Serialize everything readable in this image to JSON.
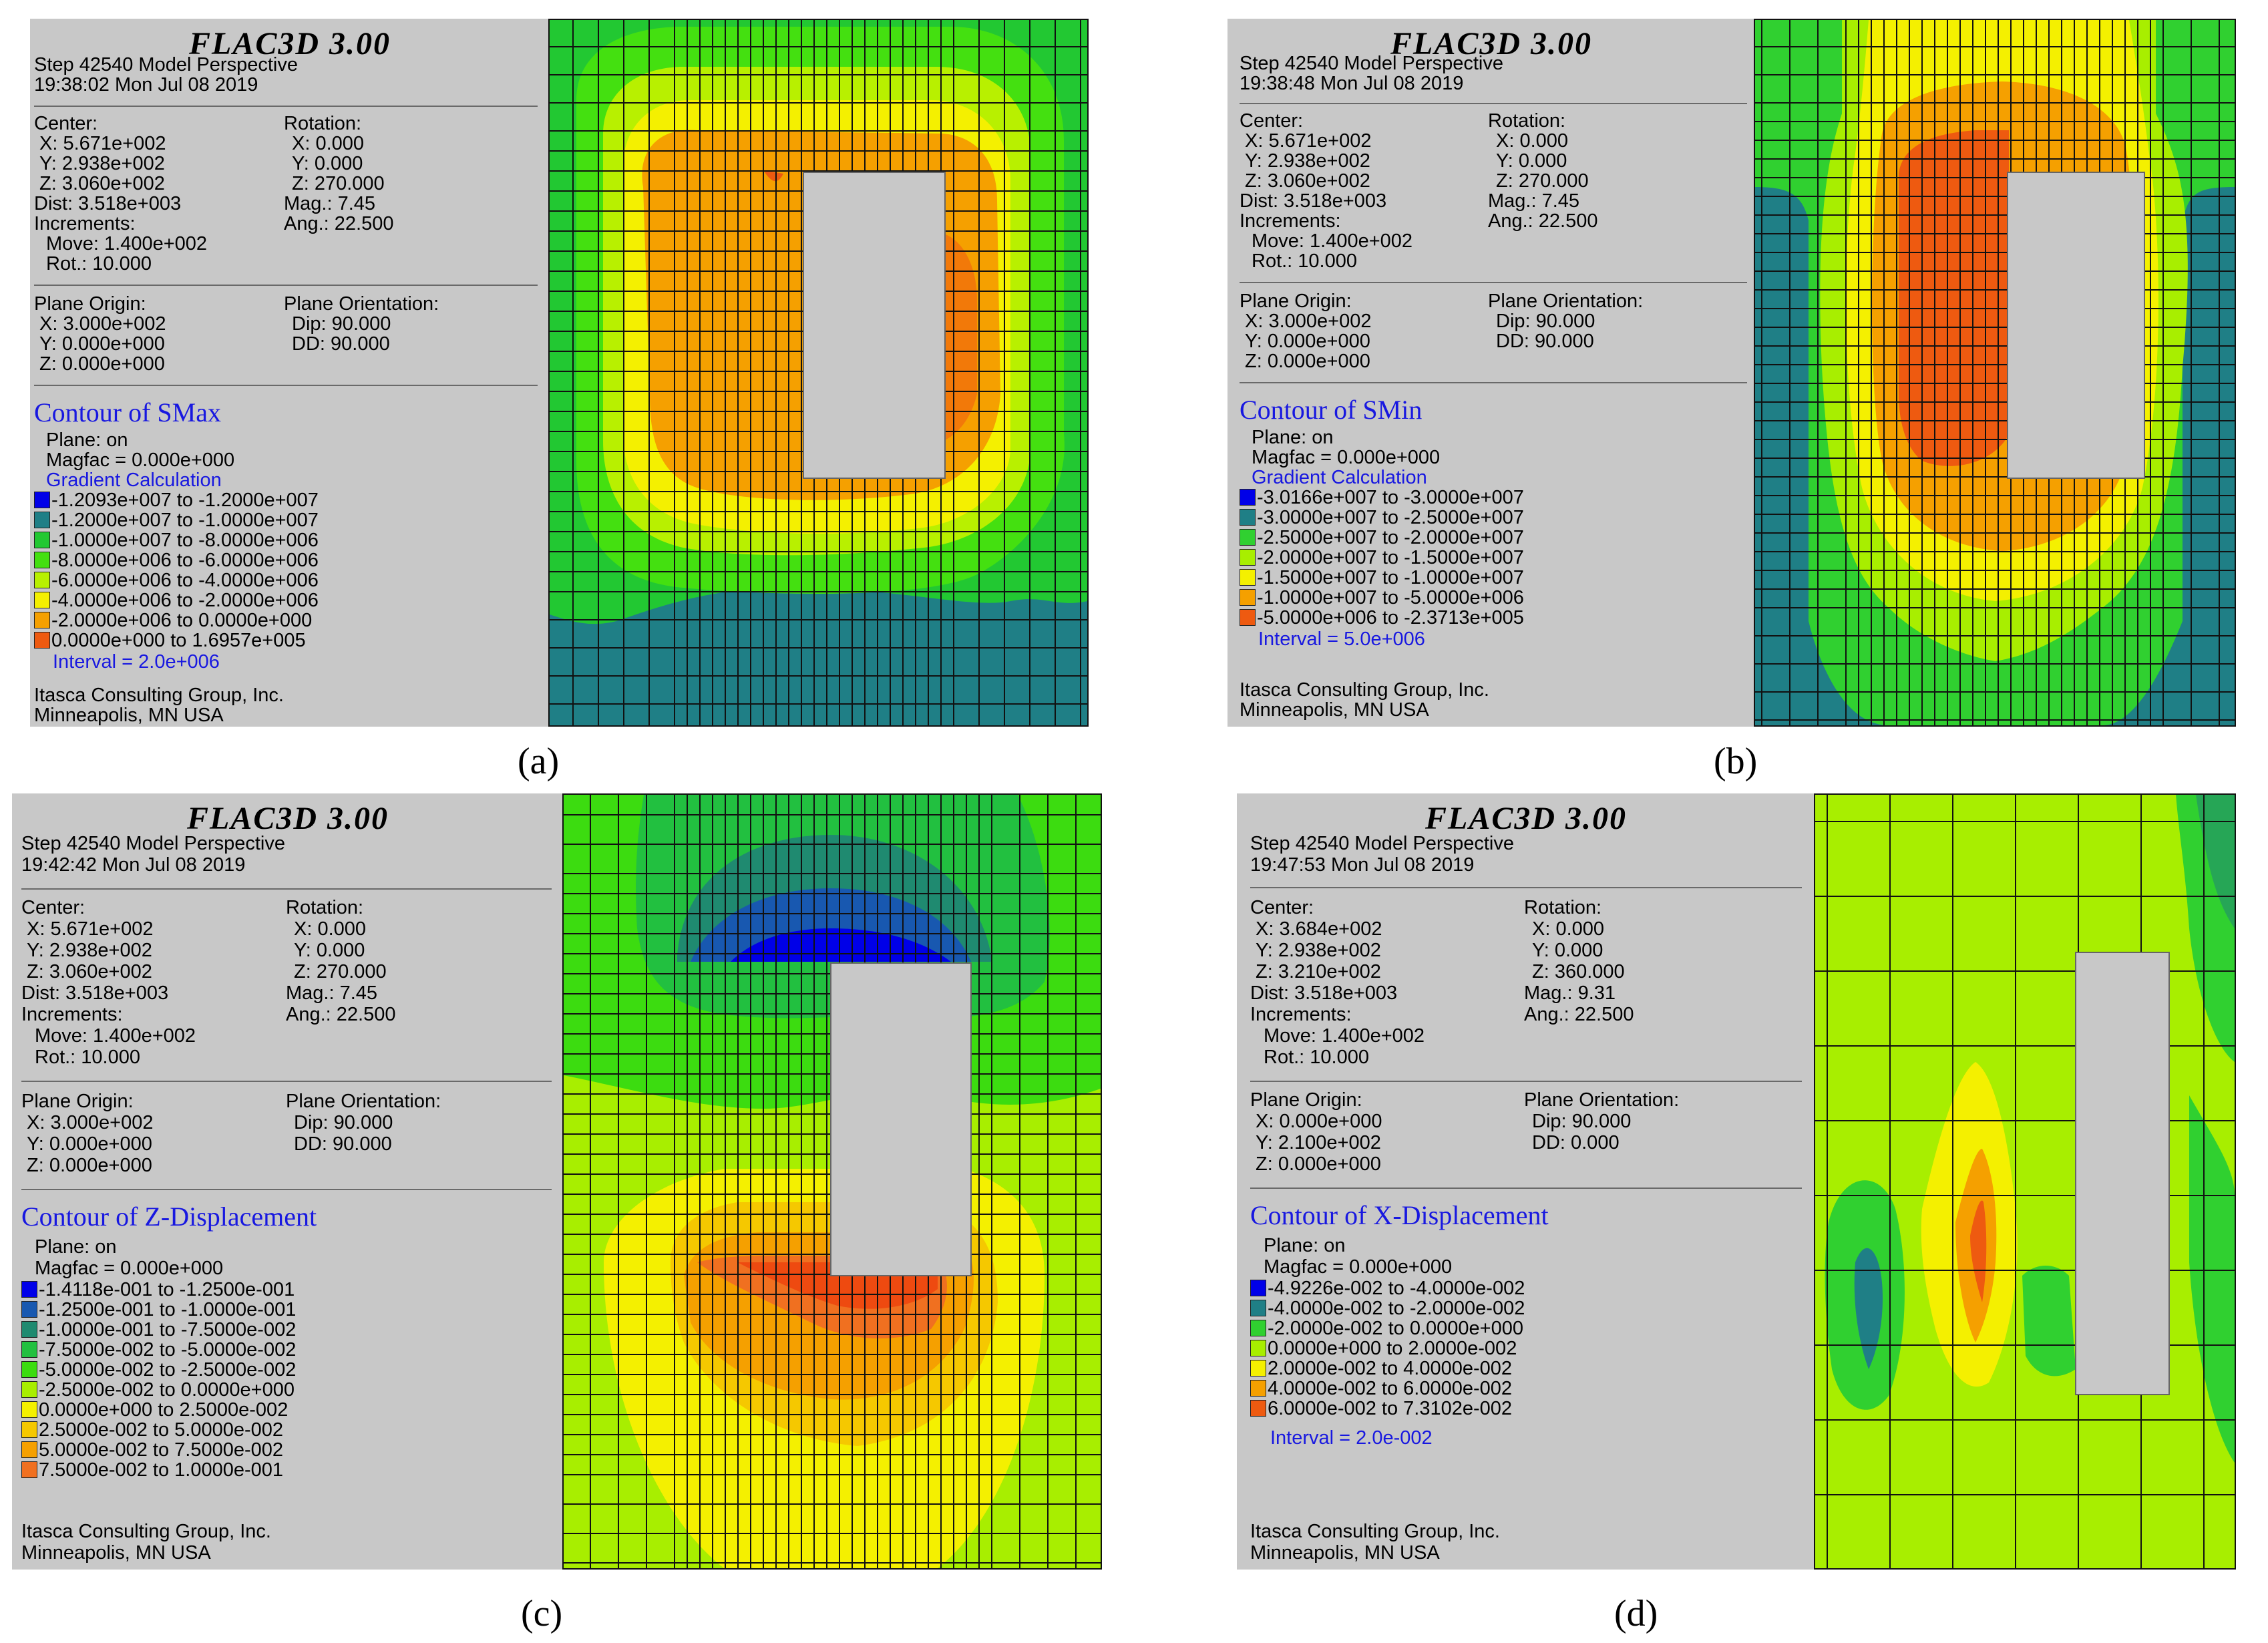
{
  "figure_title": "FLAC3D 3.00",
  "panels": [
    {
      "caption": "(a)",
      "step_line": "Step 42540  Model Perspective",
      "timestamp": "19:38:02 Mon Jul 08 2019",
      "center": [
        "Center:",
        "X: 5.671e+002",
        "Y: 2.938e+002",
        "Z: 3.060e+002",
        "Dist: 3.518e+003",
        "Increments:",
        "Move: 1.400e+002",
        "Rot.:  10.000"
      ],
      "rotation": [
        "Rotation:",
        "X:   0.000",
        "Y:   0.000",
        "Z: 270.000",
        "Mag.:     7.45",
        "Ang.:  22.500"
      ],
      "plane_origin": [
        "Plane Origin:",
        "X: 3.000e+002",
        "Y: 0.000e+000",
        "Z: 0.000e+000"
      ],
      "plane_orientation": [
        "Plane Orientation:",
        "Dip:  90.000",
        "DD:   90.000"
      ],
      "contour_title": "Contour of SMax",
      "plane_on": "Plane: on",
      "magfac": "Magfac =  0.000e+000",
      "gradient": "Gradient Calculation",
      "legend": [
        {
          "color": "#0000e8",
          "label": "-1.2093e+007 to -1.2000e+007"
        },
        {
          "color": "#1f7f86",
          "label": "-1.2000e+007 to -1.0000e+007"
        },
        {
          "color": "#22c832",
          "label": "-1.0000e+007 to -8.0000e+006"
        },
        {
          "color": "#44e010",
          "label": "-8.0000e+006 to -6.0000e+006"
        },
        {
          "color": "#b8f000",
          "label": "-6.0000e+006 to -4.0000e+006"
        },
        {
          "color": "#f4f000",
          "label": "-4.0000e+006 to -2.0000e+006"
        },
        {
          "color": "#f5a000",
          "label": "-2.0000e+006 to  0.0000e+000"
        },
        {
          "color": "#ee5a10",
          "label": " 0.0000e+000 to  1.6957e+005"
        }
      ],
      "interval": "Interval =  2.0e+006",
      "company": "Itasca Consulting Group, Inc.",
      "location": "Minneapolis, MN  USA"
    },
    {
      "caption": "(b)",
      "step_line": "Step 42540  Model Perspective",
      "timestamp": "19:38:48 Mon Jul 08 2019",
      "center": [
        "Center:",
        "X: 5.671e+002",
        "Y: 2.938e+002",
        "Z: 3.060e+002",
        "Dist: 3.518e+003",
        "Increments:",
        "Move: 1.400e+002",
        "Rot.:  10.000"
      ],
      "rotation": [
        "Rotation:",
        "X:   0.000",
        "Y:   0.000",
        "Z: 270.000",
        "Mag.:     7.45",
        "Ang.:  22.500"
      ],
      "plane_origin": [
        "Plane Origin:",
        "X: 3.000e+002",
        "Y: 0.000e+000",
        "Z: 0.000e+000"
      ],
      "plane_orientation": [
        "Plane Orientation:",
        "Dip:  90.000",
        "DD:   90.000"
      ],
      "contour_title": "Contour of SMin",
      "plane_on": "Plane: on",
      "magfac": "Magfac =  0.000e+000",
      "gradient": "Gradient Calculation",
      "legend": [
        {
          "color": "#0000e8",
          "label": "-3.0166e+007 to -3.0000e+007"
        },
        {
          "color": "#1f7f86",
          "label": "-3.0000e+007 to -2.5000e+007"
        },
        {
          "color": "#30d030",
          "label": "-2.5000e+007 to -2.0000e+007"
        },
        {
          "color": "#a8ee00",
          "label": "-2.0000e+007 to -1.5000e+007"
        },
        {
          "color": "#f4f000",
          "label": "-1.5000e+007 to -1.0000e+007"
        },
        {
          "color": "#f5a000",
          "label": "-1.0000e+007 to -5.0000e+006"
        },
        {
          "color": "#ee5a10",
          "label": "-5.0000e+006 to -2.3713e+005"
        }
      ],
      "interval": "Interval =  5.0e+006",
      "company": "Itasca Consulting Group, Inc.",
      "location": "Minneapolis, MN  USA"
    },
    {
      "caption": "(c)",
      "step_line": "Step 42540  Model Perspective",
      "timestamp": "19:42:42 Mon Jul 08 2019",
      "center": [
        "Center:",
        "X: 5.671e+002",
        "Y: 2.938e+002",
        "Z: 3.060e+002",
        "Dist: 3.518e+003",
        "Increments:",
        "Move: 1.400e+002",
        "Rot.:  10.000"
      ],
      "rotation": [
        "Rotation:",
        "X:   0.000",
        "Y:   0.000",
        "Z: 270.000",
        "Mag.:     7.45",
        "Ang.:  22.500"
      ],
      "plane_origin": [
        "Plane Origin:",
        "X: 3.000e+002",
        "Y: 0.000e+000",
        "Z: 0.000e+000"
      ],
      "plane_orientation": [
        "Plane Orientation:",
        "Dip:  90.000",
        "DD:   90.000"
      ],
      "contour_title": "Contour of Z-Displacement",
      "plane_on": "Plane: on",
      "magfac": "Magfac =  0.000e+000",
      "gradient": "",
      "legend": [
        {
          "color": "#0000e8",
          "label": "-1.4118e-001 to -1.2500e-001"
        },
        {
          "color": "#1858b0",
          "label": "-1.2500e-001 to -1.0000e-001"
        },
        {
          "color": "#1f8a70",
          "label": "-1.0000e-001 to -7.5000e-002"
        },
        {
          "color": "#22c040",
          "label": "-7.5000e-002 to -5.0000e-002"
        },
        {
          "color": "#3cdc10",
          "label": "-5.0000e-002 to -2.5000e-002"
        },
        {
          "color": "#a8ee00",
          "label": "-2.5000e-002 to  0.0000e+000"
        },
        {
          "color": "#f4f000",
          "label": " 0.0000e+000 to  2.5000e-002"
        },
        {
          "color": "#f5c800",
          "label": " 2.5000e-002 to  5.0000e-002"
        },
        {
          "color": "#f5a000",
          "label": " 5.0000e-002 to  7.5000e-002"
        },
        {
          "color": "#f07020",
          "label": " 7.5000e-002 to  1.0000e-001"
        }
      ],
      "interval": "",
      "company": "Itasca Consulting Group, Inc.",
      "location": "Minneapolis, MN  USA"
    },
    {
      "caption": "(d)",
      "step_line": "Step 42540  Model Perspective",
      "timestamp": "19:47:53 Mon Jul 08 2019",
      "center": [
        "Center:",
        "X: 3.684e+002",
        "Y: 2.938e+002",
        "Z: 3.210e+002",
        "Dist: 3.518e+003",
        "Increments:",
        "Move: 1.400e+002",
        "Rot.:  10.000"
      ],
      "rotation": [
        "Rotation:",
        "X:   0.000",
        "Y:   0.000",
        "Z: 360.000",
        "Mag.:     9.31",
        "Ang.:  22.500"
      ],
      "plane_origin": [
        "Plane Origin:",
        "X: 0.000e+000",
        "Y: 2.100e+002",
        "Z: 0.000e+000"
      ],
      "plane_orientation": [
        "Plane Orientation:",
        "Dip:  90.000",
        "DD:    0.000"
      ],
      "contour_title": "Contour of X-Displacement",
      "plane_on": "Plane: on",
      "magfac": "Magfac =  0.000e+000",
      "gradient": "",
      "legend": [
        {
          "color": "#0000e8",
          "label": "-4.9226e-002 to -4.0000e-002"
        },
        {
          "color": "#1f7f86",
          "label": "-4.0000e-002 to -2.0000e-002"
        },
        {
          "color": "#30d030",
          "label": "-2.0000e-002 to  0.0000e+000"
        },
        {
          "color": "#a8ee00",
          "label": " 0.0000e+000 to  2.0000e-002"
        },
        {
          "color": "#f4f000",
          "label": " 2.0000e-002 to  4.0000e-002"
        },
        {
          "color": "#f5a000",
          "label": " 4.0000e-002 to  6.0000e-002"
        },
        {
          "color": "#ee5a10",
          "label": " 6.0000e-002 to  7.3102e-002"
        }
      ],
      "interval": "Interval =  2.0e-002",
      "company": "Itasca Consulting Group, Inc.",
      "location": "Minneapolis, MN  USA"
    }
  ]
}
